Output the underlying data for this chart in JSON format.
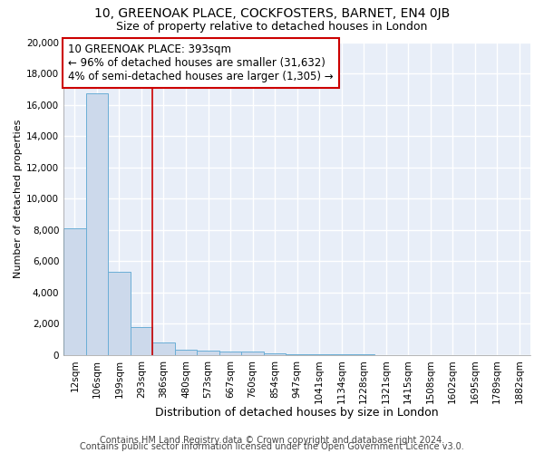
{
  "title1": "10, GREENOAK PLACE, COCKFOSTERS, BARNET, EN4 0JB",
  "title2": "Size of property relative to detached houses in London",
  "xlabel": "Distribution of detached houses by size in London",
  "ylabel": "Number of detached properties",
  "categories": [
    "12sqm",
    "106sqm",
    "199sqm",
    "293sqm",
    "386sqm",
    "480sqm",
    "573sqm",
    "667sqm",
    "760sqm",
    "854sqm",
    "947sqm",
    "1041sqm",
    "1134sqm",
    "1228sqm",
    "1321sqm",
    "1415sqm",
    "1508sqm",
    "1602sqm",
    "1695sqm",
    "1789sqm",
    "1882sqm"
  ],
  "values": [
    8100,
    16700,
    5300,
    1800,
    800,
    350,
    250,
    200,
    200,
    80,
    50,
    30,
    20,
    15,
    10,
    8,
    5,
    4,
    3,
    2,
    1
  ],
  "bar_color": "#ccd9eb",
  "bar_edge_color": "#6baed6",
  "background_color": "#e8eef8",
  "vline_color": "#cc0000",
  "vline_position": 3.5,
  "annotation_line1": "10 GREENOAK PLACE: 393sqm",
  "annotation_line2": "← 96% of detached houses are smaller (31,632)",
  "annotation_line3": "4% of semi-detached houses are larger (1,305) →",
  "annotation_box_color": "white",
  "annotation_box_edge": "#cc0000",
  "ylim": [
    0,
    20000
  ],
  "yticks": [
    0,
    2000,
    4000,
    6000,
    8000,
    10000,
    12000,
    14000,
    16000,
    18000,
    20000
  ],
  "footer1": "Contains HM Land Registry data © Crown copyright and database right 2024.",
  "footer2": "Contains public sector information licensed under the Open Government Licence v3.0.",
  "title1_fontsize": 10,
  "title2_fontsize": 9,
  "xlabel_fontsize": 9,
  "ylabel_fontsize": 8,
  "tick_fontsize": 7.5,
  "annotation_fontsize": 8.5,
  "footer_fontsize": 7
}
